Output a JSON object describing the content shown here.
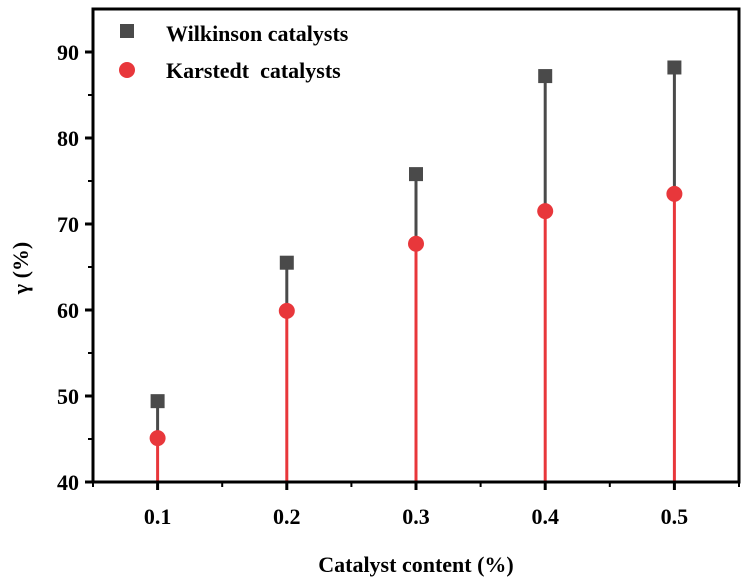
{
  "chart_data": {
    "type": "scatter",
    "subtype": "drop-line stem plot",
    "title": "",
    "xlabel": "Catalyst content (%)",
    "ylabel": "γ (%)",
    "x": [
      0.1,
      0.2,
      0.3,
      0.4,
      0.5
    ],
    "x_tick_labels": [
      "0.1",
      "0.2",
      "0.3",
      "0.4",
      "0.5"
    ],
    "y_tick_labels": [
      "40",
      "50",
      "60",
      "70",
      "80",
      "90"
    ],
    "y_ticks": [
      40,
      50,
      60,
      70,
      80,
      90
    ],
    "xlim": [
      0.05,
      0.55
    ],
    "ylim": [
      40,
      95
    ],
    "grid": false,
    "legend_position": "upper left",
    "series": [
      {
        "name": "Wilkinson catalysts",
        "marker": "square",
        "color": "#4a4a4a",
        "values": [
          49.4,
          65.5,
          75.8,
          87.2,
          88.2
        ]
      },
      {
        "name": "Karstedt  catalysts",
        "marker": "circle",
        "color": "#e8373b",
        "values": [
          45.1,
          59.9,
          67.7,
          71.5,
          73.5
        ]
      }
    ]
  }
}
